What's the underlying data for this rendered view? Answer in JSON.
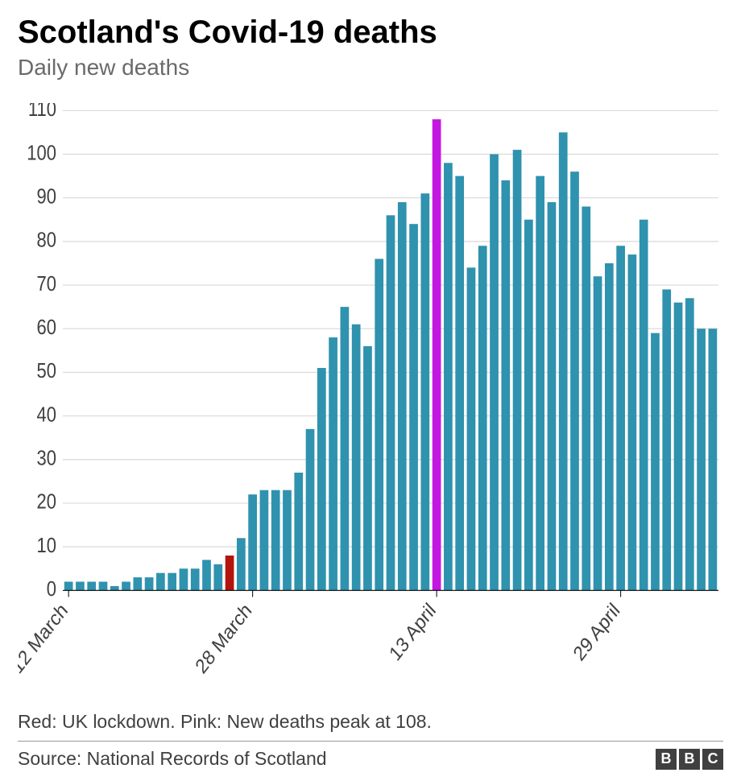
{
  "header": {
    "title": "Scotland's Covid-19 deaths",
    "subtitle": "Daily new deaths"
  },
  "chart": {
    "type": "bar",
    "values": [
      2,
      2,
      2,
      2,
      1,
      2,
      3,
      3,
      4,
      4,
      5,
      5,
      7,
      6,
      8,
      12,
      22,
      23,
      23,
      23,
      27,
      37,
      51,
      58,
      65,
      61,
      56,
      76,
      86,
      89,
      84,
      91,
      108,
      98,
      95,
      74,
      79,
      100,
      94,
      101,
      85,
      95,
      89,
      105,
      96,
      88,
      72,
      75,
      79,
      77,
      85,
      59,
      69,
      66,
      67,
      60,
      60
    ],
    "bar_colors_default": "#2f92ae",
    "bar_colors_override": {
      "14": "#b3140d",
      "32": "#c316e0"
    },
    "ylim": [
      0,
      110
    ],
    "ytick_step": 10,
    "yticks": [
      0,
      10,
      20,
      30,
      40,
      50,
      60,
      70,
      80,
      90,
      100,
      110
    ],
    "xtick_indices": [
      0,
      16,
      32,
      48
    ],
    "xtick_labels": [
      "12 March",
      "28 March",
      "13 April",
      "29 April"
    ],
    "bar_gap_ratio": 0.25,
    "grid_color": "#d9d9d9",
    "baseline_color": "#000000",
    "ytick_label_color": "#404040",
    "xtick_label_color": "#404040",
    "background_color": "#ffffff",
    "title_fontsize": 40,
    "subtitle_fontsize": 28,
    "axis_fontsize": 22
  },
  "caption": "Red: UK lockdown. Pink: New deaths peak at 108.",
  "footer": {
    "source": "Source: National Records of Scotland",
    "logo_letters": [
      "B",
      "B",
      "C"
    ]
  }
}
